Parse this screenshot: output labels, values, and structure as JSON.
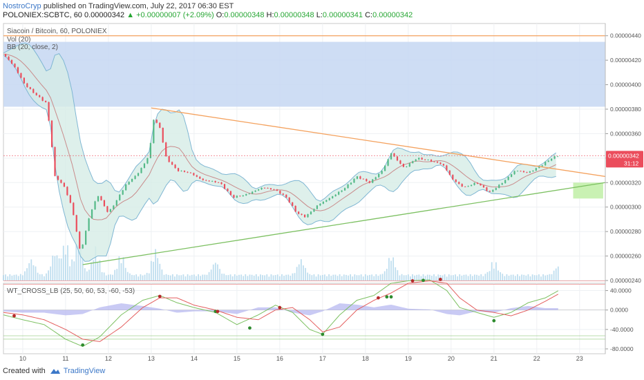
{
  "header": {
    "author": "NostroCryp",
    "published_text": "published on TradingView.com, July 22, 2017 06:30 EST",
    "symbol": "POLONIEX:SCBTC, 60",
    "last": "0.00000342",
    "change": "▲ +0.00000007 (+2.09%)",
    "o_label": "O:",
    "o_value": "0.00000348",
    "h_label": "H:",
    "h_value": "0.00000348",
    "l_label": "L:",
    "l_value": "0.00000341",
    "c_label": "C:",
    "c_value": "0.00000342"
  },
  "legend": {
    "title": "Siacoin / Bitcoin, 60, POLONIEX",
    "vol": "Vol (20)",
    "bb": "BB (20, close, 2)",
    "wt": "WT_CROSS_LB (25, 50, 60, 53, -60, -53)"
  },
  "price_badge": {
    "value": "0.00000342",
    "countdown": "31:12"
  },
  "footer": {
    "created_with": "Created with",
    "brand": "TradingView"
  },
  "colors": {
    "up": "#53b987",
    "down": "#eb4d5c",
    "bb_fill": "#d6ece6",
    "bb_line": "#7fb6d3",
    "bb_basis": "#c98b8b",
    "volume": "#a9d3ea",
    "resistance_zone": "#c6d7f2",
    "target_zone": "#c9f1b3",
    "triangle_upper": "#f4a15d",
    "triangle_lower": "#7cc061",
    "wt1": "#7cc061",
    "wt2": "#e35d5d",
    "wt_hist": "#b7b8f0",
    "badge": "#eb4d5c"
  },
  "chart_data": [
    {
      "type": "candlestick",
      "pane": "main",
      "ylim": [
        2.4e-06,
        4.5e-06
      ],
      "y_ticks": [
        "0.00000440",
        "0.00000420",
        "0.00000400",
        "0.00000380",
        "0.00000360",
        "0.00000340",
        "0.00000320",
        "0.00000300",
        "0.00000280",
        "0.00000260",
        "0.00000240"
      ],
      "x_ticks": [
        "10",
        "11",
        "12",
        "13",
        "14",
        "15",
        "16",
        "17",
        "18",
        "19",
        "20",
        "21",
        "22",
        "23"
      ],
      "xlim": [
        9.55,
        23.6
      ],
      "horizontal_level": 4.4e-06,
      "resistance_zone": [
        3.82e-06,
        4.35e-06
      ],
      "target_zone": {
        "x": [
          22.85,
          23.55
        ],
        "y": [
          3.07e-06,
          3.2e-06
        ]
      },
      "triangle_upper": {
        "x": [
          13.0,
          23.6
        ],
        "y": [
          3.81e-06,
          3.25e-06
        ]
      },
      "triangle_lower": {
        "x": [
          11.4,
          23.6
        ],
        "y": [
          2.53e-06,
          3.2e-06
        ]
      },
      "close_path": [
        [
          9.55,
          4.25e-06
        ],
        [
          9.8,
          4.15e-06
        ],
        [
          10.05,
          4e-06
        ],
        [
          10.3,
          3.92e-06
        ],
        [
          10.55,
          3.85e-06
        ],
        [
          10.65,
          3.6e-06
        ],
        [
          10.75,
          3.25e-06
        ],
        [
          10.95,
          3.18e-06
        ],
        [
          11.15,
          3e-06
        ],
        [
          11.35,
          2.62e-06
        ],
        [
          11.55,
          2.92e-06
        ],
        [
          11.75,
          3.1e-06
        ],
        [
          12.0,
          2.95e-06
        ],
        [
          12.2,
          3.06e-06
        ],
        [
          12.4,
          3.18e-06
        ],
        [
          12.7,
          3.28e-06
        ],
        [
          12.95,
          3.42e-06
        ],
        [
          13.05,
          3.72e-06
        ],
        [
          13.2,
          3.65e-06
        ],
        [
          13.35,
          3.4e-06
        ],
        [
          13.6,
          3.3e-06
        ],
        [
          13.9,
          3.28e-06
        ],
        [
          14.2,
          3.22e-06
        ],
        [
          14.6,
          3.2e-06
        ],
        [
          14.9,
          3.08e-06
        ],
        [
          15.2,
          3.1e-06
        ],
        [
          15.6,
          3.16e-06
        ],
        [
          15.9,
          3.14e-06
        ],
        [
          16.15,
          3.08e-06
        ],
        [
          16.4,
          2.95e-06
        ],
        [
          16.6,
          2.92e-06
        ],
        [
          16.9,
          3.02e-06
        ],
        [
          17.2,
          3.08e-06
        ],
        [
          17.5,
          3.15e-06
        ],
        [
          17.8,
          3.25e-06
        ],
        [
          18.1,
          3.2e-06
        ],
        [
          18.4,
          3.3e-06
        ],
        [
          18.6,
          3.44e-06
        ],
        [
          18.9,
          3.32e-06
        ],
        [
          19.2,
          3.4e-06
        ],
        [
          19.5,
          3.38e-06
        ],
        [
          19.8,
          3.35e-06
        ],
        [
          20.05,
          3.22e-06
        ],
        [
          20.3,
          3.16e-06
        ],
        [
          20.6,
          3.2e-06
        ],
        [
          20.9,
          3.12e-06
        ],
        [
          21.2,
          3.2e-06
        ],
        [
          21.5,
          3.3e-06
        ],
        [
          21.8,
          3.28e-06
        ],
        [
          22.1,
          3.34e-06
        ],
        [
          22.35,
          3.4e-06
        ],
        [
          22.5,
          3.42e-06
        ]
      ],
      "volume_peaks": [
        [
          10.2,
          0.35
        ],
        [
          10.75,
          0.5
        ],
        [
          11.0,
          0.7
        ],
        [
          11.3,
          0.8
        ],
        [
          11.7,
          0.6
        ],
        [
          12.3,
          0.45
        ],
        [
          13.1,
          0.55
        ],
        [
          14.5,
          0.3
        ],
        [
          16.5,
          0.35
        ],
        [
          18.6,
          0.45
        ],
        [
          21.0,
          0.3
        ],
        [
          22.5,
          0.2
        ]
      ]
    },
    {
      "type": "line",
      "pane": "oscillator",
      "ylim": [
        -90,
        55
      ],
      "y_ticks": [
        "40.0000",
        "0.0000",
        "-40.0000",
        "-80.0000"
      ],
      "overbought": [
        60,
        53
      ],
      "oversold": [
        -60,
        -53
      ],
      "series": [
        {
          "name": "wt1",
          "points": [
            [
              9.55,
              -10
            ],
            [
              10.0,
              -20
            ],
            [
              10.5,
              -30
            ],
            [
              11.0,
              -60
            ],
            [
              11.4,
              -75
            ],
            [
              11.8,
              -55
            ],
            [
              12.3,
              -10
            ],
            [
              12.8,
              20
            ],
            [
              13.2,
              30
            ],
            [
              13.6,
              15
            ],
            [
              14.0,
              5
            ],
            [
              14.5,
              -5
            ],
            [
              15.0,
              -30
            ],
            [
              15.5,
              -10
            ],
            [
              15.9,
              10
            ],
            [
              16.3,
              -5
            ],
            [
              16.7,
              -40
            ],
            [
              17.0,
              -50
            ],
            [
              17.4,
              -10
            ],
            [
              17.8,
              20
            ],
            [
              18.2,
              30
            ],
            [
              18.6,
              55
            ],
            [
              19.0,
              60
            ],
            [
              19.5,
              62
            ],
            [
              19.9,
              40
            ],
            [
              20.2,
              5
            ],
            [
              20.6,
              -5
            ],
            [
              21.0,
              -15
            ],
            [
              21.4,
              -5
            ],
            [
              21.8,
              15
            ],
            [
              22.2,
              25
            ],
            [
              22.55,
              42
            ]
          ]
        },
        {
          "name": "wt2",
          "points": [
            [
              9.55,
              -5
            ],
            [
              10.0,
              -10
            ],
            [
              10.5,
              -20
            ],
            [
              11.0,
              -40
            ],
            [
              11.4,
              -60
            ],
            [
              11.8,
              -65
            ],
            [
              12.3,
              -35
            ],
            [
              12.8,
              5
            ],
            [
              13.2,
              25
            ],
            [
              13.6,
              25
            ],
            [
              14.0,
              10
            ],
            [
              14.5,
              0
            ],
            [
              15.0,
              -15
            ],
            [
              15.5,
              -20
            ],
            [
              15.9,
              0
            ],
            [
              16.3,
              5
            ],
            [
              16.7,
              -20
            ],
            [
              17.0,
              -45
            ],
            [
              17.4,
              -35
            ],
            [
              17.8,
              0
            ],
            [
              18.2,
              20
            ],
            [
              18.6,
              35
            ],
            [
              19.0,
              55
            ],
            [
              19.5,
              60
            ],
            [
              19.9,
              55
            ],
            [
              20.2,
              25
            ],
            [
              20.6,
              0
            ],
            [
              21.0,
              -5
            ],
            [
              21.4,
              -12
            ],
            [
              21.8,
              0
            ],
            [
              22.2,
              18
            ],
            [
              22.55,
              35
            ]
          ]
        }
      ],
      "cross_points": [
        [
          9.8,
          -12,
          "down"
        ],
        [
          11.4,
          -72,
          "up"
        ],
        [
          13.2,
          28,
          "down"
        ],
        [
          14.5,
          -3,
          "up"
        ],
        [
          14.55,
          -3,
          "down"
        ],
        [
          15.3,
          -37,
          "up"
        ],
        [
          16.0,
          5,
          "down"
        ],
        [
          17.0,
          -50,
          "up"
        ],
        [
          18.3,
          25,
          "down"
        ],
        [
          18.5,
          27,
          "up"
        ],
        [
          18.6,
          27,
          "up"
        ],
        [
          19.1,
          60,
          "down"
        ],
        [
          19.35,
          61,
          "up"
        ],
        [
          19.75,
          63,
          "down"
        ],
        [
          21.0,
          -22,
          "up"
        ]
      ]
    }
  ]
}
